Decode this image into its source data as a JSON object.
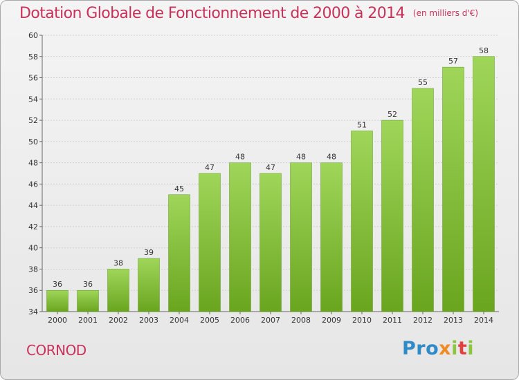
{
  "title": "Dotation Globale de Fonctionnement de 2000 à 2014",
  "subtitle": "(en milliers d'€)",
  "location": "CORNOD",
  "logo": {
    "p1": "Pro",
    "p2": "x",
    "p3": "i",
    "p4": "t",
    "p5": "i"
  },
  "colors": {
    "accent": "#c8325a",
    "bar_light": "#9fd65a",
    "bar_dark": "#6aa51f"
  },
  "chart_data": {
    "type": "bar",
    "title": "Dotation Globale de Fonctionnement de 2000 à 2014",
    "subtitle": "(en milliers d'€)",
    "xlabel": "",
    "ylabel": "",
    "categories": [
      "2000",
      "2001",
      "2002",
      "2003",
      "2004",
      "2005",
      "2006",
      "2007",
      "2008",
      "2009",
      "2010",
      "2011",
      "2012",
      "2013",
      "2014"
    ],
    "values": [
      36,
      36,
      38,
      39,
      45,
      47,
      48,
      47,
      48,
      48,
      51,
      52,
      55,
      57,
      58
    ],
    "ylim": [
      34,
      60
    ],
    "yticks": [
      34,
      36,
      38,
      40,
      42,
      44,
      46,
      48,
      50,
      52,
      54,
      56,
      58,
      60
    ],
    "grid": true,
    "legend": "none"
  }
}
